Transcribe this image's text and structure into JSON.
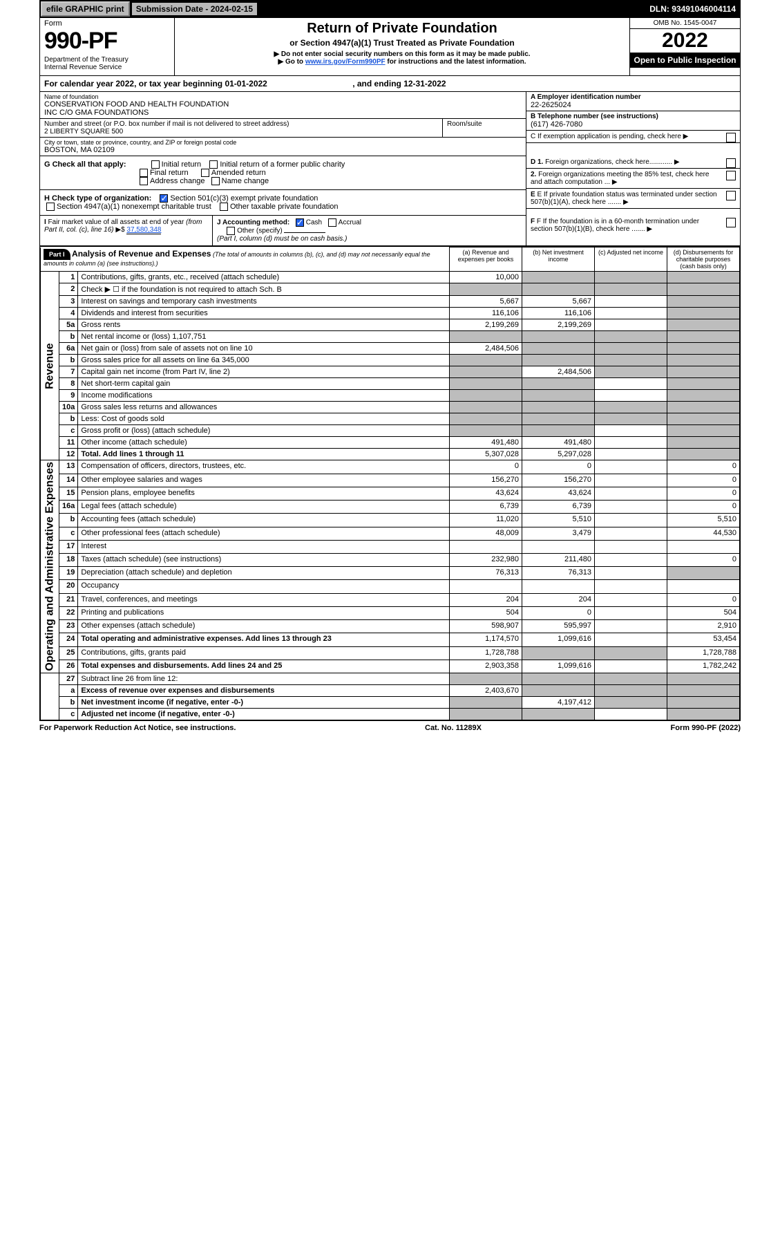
{
  "topbar": {
    "efile": "efile GRAPHIC print",
    "submission": "Submission Date - 2024-02-15",
    "dln": "DLN: 93491046004114"
  },
  "header": {
    "form_label": "Form",
    "form_num": "990-PF",
    "dept": "Department of the Treasury\nInternal Revenue Service",
    "title": "Return of Private Foundation",
    "subtitle": "or Section 4947(a)(1) Trust Treated as Private Foundation",
    "instr1": "▶ Do not enter social security numbers on this form as it may be made public.",
    "instr2": "▶ Go to ",
    "instr2_link": "www.irs.gov/Form990PF",
    "instr2_after": " for instructions and the latest information.",
    "omb": "OMB No. 1545-0047",
    "year": "2022",
    "open": "Open to Public Inspection"
  },
  "cal_year": {
    "label_a": "For calendar year 2022, or tax year beginning ",
    "begin": "01-01-2022",
    "label_b": " , and ending ",
    "end": "12-31-2022"
  },
  "name": {
    "label": "Name of foundation",
    "value": "CONSERVATION FOOD AND HEALTH FOUNDATION\nINC C/O GMA FOUNDATIONS"
  },
  "ein": {
    "label": "A Employer identification number",
    "value": "22-2625024"
  },
  "address": {
    "label": "Number and street (or P.O. box number if mail is not delivered to street address)",
    "value": "2 LIBERTY SQUARE 500",
    "room_label": "Room/suite"
  },
  "phone": {
    "label": "B Telephone number (see instructions)",
    "value": "(617) 426-7080"
  },
  "city": {
    "label": "City or town, state or province, country, and ZIP or foreign postal code",
    "value": "BOSTON, MA  02109"
  },
  "c": "C If exemption application is pending, check here",
  "g_label": "G Check all that apply:",
  "g_opts": [
    "Initial return",
    "Initial return of a former public charity",
    "Final return",
    "Amended return",
    "Address change",
    "Name change"
  ],
  "d1": "D 1. Foreign organizations, check here............",
  "d2": "2. Foreign organizations meeting the 85% test, check here and attach computation ...",
  "h_label": "H Check type of organization:",
  "h_opt1": "Section 501(c)(3) exempt private foundation",
  "h_opt2": "Section 4947(a)(1) nonexempt charitable trust",
  "h_opt3": "Other taxable private foundation",
  "e": "E If private foundation status was terminated under section 507(b)(1)(A), check here .......",
  "i_label": "I Fair market value of all assets at end of year (from Part II, col. (c), line 16)",
  "i_value": "37,580,348",
  "j_label": "J Accounting method:",
  "j_cash": "Cash",
  "j_accrual": "Accrual",
  "j_other": "Other (specify)",
  "j_note": "(Part I, column (d) must be on cash basis.)",
  "f": "F If the foundation is in a 60-month termination under section 507(b)(1)(B), check here .......",
  "part1": {
    "label": "Part I",
    "title": "Analysis of Revenue and Expenses",
    "desc": "(The total of amounts in columns (b), (c), and (d) may not necessarily equal the amounts in column (a) (see instructions).)",
    "col_a": "(a) Revenue and expenses per books",
    "col_b": "(b) Net investment income",
    "col_c": "(c) Adjusted net income",
    "col_d": "(d) Disbursements for charitable purposes (cash basis only)"
  },
  "side_rev": "Revenue",
  "side_exp": "Operating and Administrative Expenses",
  "rows": [
    {
      "n": "1",
      "d": "Contributions, gifts, grants, etc., received (attach schedule)",
      "a": "10,000",
      "b": "",
      "c": "",
      "dd": "",
      "sb": true,
      "sc": true,
      "sd": true
    },
    {
      "n": "2",
      "d": "Check ▶ ☐ if the foundation is not required to attach Sch. B",
      "a": "",
      "b": "",
      "c": "",
      "dd": "",
      "sa": true,
      "sb": true,
      "sc": true,
      "sd": true
    },
    {
      "n": "3",
      "d": "Interest on savings and temporary cash investments",
      "a": "5,667",
      "b": "5,667",
      "c": "",
      "dd": "",
      "sd": true
    },
    {
      "n": "4",
      "d": "Dividends and interest from securities",
      "a": "116,106",
      "b": "116,106",
      "c": "",
      "dd": "",
      "sd": true
    },
    {
      "n": "5a",
      "d": "Gross rents",
      "a": "2,199,269",
      "b": "2,199,269",
      "c": "",
      "dd": "",
      "sd": true
    },
    {
      "n": "b",
      "d": "Net rental income or (loss)         1,107,751",
      "a": "",
      "b": "",
      "c": "",
      "dd": "",
      "sa": true,
      "sb": true,
      "sc": true,
      "sd": true
    },
    {
      "n": "6a",
      "d": "Net gain or (loss) from sale of assets not on line 10",
      "a": "2,484,506",
      "b": "",
      "c": "",
      "dd": "",
      "sb": true,
      "sc": true,
      "sd": true
    },
    {
      "n": "b",
      "d": "Gross sales price for all assets on line 6a         345,000",
      "a": "",
      "b": "",
      "c": "",
      "dd": "",
      "sa": true,
      "sb": true,
      "sc": true,
      "sd": true
    },
    {
      "n": "7",
      "d": "Capital gain net income (from Part IV, line 2)",
      "a": "",
      "b": "2,484,506",
      "c": "",
      "dd": "",
      "sa": true,
      "sc": true,
      "sd": true
    },
    {
      "n": "8",
      "d": "Net short-term capital gain",
      "a": "",
      "b": "",
      "c": "",
      "dd": "",
      "sa": true,
      "sb": true,
      "sd": true
    },
    {
      "n": "9",
      "d": "Income modifications",
      "a": "",
      "b": "",
      "c": "",
      "dd": "",
      "sa": true,
      "sb": true,
      "sd": true
    },
    {
      "n": "10a",
      "d": "Gross sales less returns and allowances",
      "a": "",
      "b": "",
      "c": "",
      "dd": "",
      "sa": true,
      "sb": true,
      "sc": true,
      "sd": true
    },
    {
      "n": "b",
      "d": "Less: Cost of goods sold",
      "a": "",
      "b": "",
      "c": "",
      "dd": "",
      "sa": true,
      "sb": true,
      "sc": true,
      "sd": true
    },
    {
      "n": "c",
      "d": "Gross profit or (loss) (attach schedule)",
      "a": "",
      "b": "",
      "c": "",
      "dd": "",
      "sa": true,
      "sb": true,
      "sd": true
    },
    {
      "n": "11",
      "d": "Other income (attach schedule)",
      "a": "491,480",
      "b": "491,480",
      "c": "",
      "dd": "",
      "sd": true
    },
    {
      "n": "12",
      "d": "Total. Add lines 1 through 11",
      "a": "5,307,028",
      "b": "5,297,028",
      "c": "",
      "dd": "",
      "bold": true,
      "sd": true
    }
  ],
  "exp_rows": [
    {
      "n": "13",
      "d": "Compensation of officers, directors, trustees, etc.",
      "a": "0",
      "b": "0",
      "c": "",
      "dd": "0"
    },
    {
      "n": "14",
      "d": "Other employee salaries and wages",
      "a": "156,270",
      "b": "156,270",
      "c": "",
      "dd": "0"
    },
    {
      "n": "15",
      "d": "Pension plans, employee benefits",
      "a": "43,624",
      "b": "43,624",
      "c": "",
      "dd": "0"
    },
    {
      "n": "16a",
      "d": "Legal fees (attach schedule)",
      "a": "6,739",
      "b": "6,739",
      "c": "",
      "dd": "0"
    },
    {
      "n": "b",
      "d": "Accounting fees (attach schedule)",
      "a": "11,020",
      "b": "5,510",
      "c": "",
      "dd": "5,510"
    },
    {
      "n": "c",
      "d": "Other professional fees (attach schedule)",
      "a": "48,009",
      "b": "3,479",
      "c": "",
      "dd": "44,530"
    },
    {
      "n": "17",
      "d": "Interest",
      "a": "",
      "b": "",
      "c": "",
      "dd": ""
    },
    {
      "n": "18",
      "d": "Taxes (attach schedule) (see instructions)",
      "a": "232,980",
      "b": "211,480",
      "c": "",
      "dd": "0"
    },
    {
      "n": "19",
      "d": "Depreciation (attach schedule) and depletion",
      "a": "76,313",
      "b": "76,313",
      "c": "",
      "dd": "",
      "sd": true
    },
    {
      "n": "20",
      "d": "Occupancy",
      "a": "",
      "b": "",
      "c": "",
      "dd": ""
    },
    {
      "n": "21",
      "d": "Travel, conferences, and meetings",
      "a": "204",
      "b": "204",
      "c": "",
      "dd": "0"
    },
    {
      "n": "22",
      "d": "Printing and publications",
      "a": "504",
      "b": "0",
      "c": "",
      "dd": "504"
    },
    {
      "n": "23",
      "d": "Other expenses (attach schedule)",
      "a": "598,907",
      "b": "595,997",
      "c": "",
      "dd": "2,910"
    },
    {
      "n": "24",
      "d": "Total operating and administrative expenses. Add lines 13 through 23",
      "a": "1,174,570",
      "b": "1,099,616",
      "c": "",
      "dd": "53,454",
      "bold": true
    },
    {
      "n": "25",
      "d": "Contributions, gifts, grants paid",
      "a": "1,728,788",
      "b": "",
      "c": "",
      "dd": "1,728,788",
      "sb": true,
      "sc": true
    },
    {
      "n": "26",
      "d": "Total expenses and disbursements. Add lines 24 and 25",
      "a": "2,903,358",
      "b": "1,099,616",
      "c": "",
      "dd": "1,782,242",
      "bold": true
    }
  ],
  "net_rows": [
    {
      "n": "27",
      "d": "Subtract line 26 from line 12:",
      "a": "",
      "b": "",
      "c": "",
      "dd": "",
      "sa": true,
      "sb": true,
      "sc": true,
      "sd": true
    },
    {
      "n": "a",
      "d": "Excess of revenue over expenses and disbursements",
      "a": "2,403,670",
      "b": "",
      "c": "",
      "dd": "",
      "bold": true,
      "sb": true,
      "sc": true,
      "sd": true
    },
    {
      "n": "b",
      "d": "Net investment income (if negative, enter -0-)",
      "a": "",
      "b": "4,197,412",
      "c": "",
      "dd": "",
      "bold": true,
      "sa": true,
      "sc": true,
      "sd": true
    },
    {
      "n": "c",
      "d": "Adjusted net income (if negative, enter -0-)",
      "a": "",
      "b": "",
      "c": "",
      "dd": "",
      "bold": true,
      "sa": true,
      "sb": true,
      "sd": true
    }
  ],
  "footer": {
    "left": "For Paperwork Reduction Act Notice, see instructions.",
    "mid": "Cat. No. 11289X",
    "right": "Form 990-PF (2022)"
  }
}
